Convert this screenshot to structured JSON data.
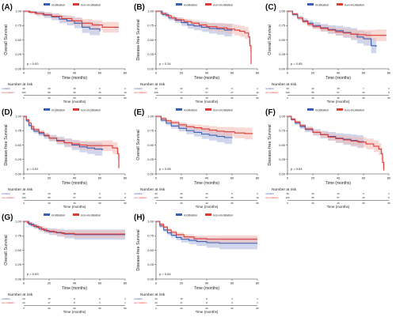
{
  "colors": {
    "blue": "#3b5fb4",
    "red": "#e03a35",
    "blue_band": "#aab5dc",
    "red_band": "#f2b9b3",
    "axis": "#333333"
  },
  "legend_labels": [
    "motilation",
    "non-motilation"
  ],
  "x_ticks": [
    "0",
    "20",
    "40",
    "60",
    "80"
  ],
  "y_ticks": [
    "0.00",
    "0.25",
    "0.50",
    "0.75",
    "1.00"
  ],
  "xlabel": "Time (months)",
  "risk_title": "Number at risk",
  "risk_rowlabels": [
    "motilation",
    "non-motilation"
  ],
  "chart_data": [
    {
      "panel": "(A)",
      "type": "line",
      "ylabel": "Overall Survival",
      "pvalue": "p = 0.63",
      "xlim": [
        0,
        80
      ],
      "ylim": [
        0,
        1
      ],
      "series": [
        {
          "name": "motilation",
          "x": [
            0,
            5,
            10,
            16,
            22,
            28,
            34,
            40,
            46,
            52,
            60
          ],
          "y": [
            1.0,
            0.98,
            0.96,
            0.93,
            0.9,
            0.86,
            0.83,
            0.79,
            0.72,
            0.69,
            0.65
          ]
        },
        {
          "name": "non-motilation",
          "x": [
            0,
            4,
            9,
            15,
            22,
            30,
            38,
            46,
            54,
            62,
            75
          ],
          "y": [
            1.0,
            0.98,
            0.96,
            0.94,
            0.91,
            0.87,
            0.83,
            0.79,
            0.76,
            0.72,
            0.72
          ]
        }
      ],
      "risk": [
        [
          "30",
          "20",
          "15",
          "6",
          "2"
        ],
        [
          "100",
          "80",
          "60",
          "25",
          "10"
        ]
      ]
    },
    {
      "panel": "(B)",
      "type": "line",
      "ylabel": "Disease-free Survival",
      "pvalue": "p = 0.34",
      "xlim": [
        0,
        80
      ],
      "ylim": [
        0,
        1
      ],
      "series": [
        {
          "name": "motilation",
          "x": [
            0,
            5,
            10,
            15,
            20,
            25,
            30,
            36,
            42,
            48,
            54,
            60
          ],
          "y": [
            1.0,
            0.94,
            0.88,
            0.84,
            0.8,
            0.76,
            0.74,
            0.72,
            0.7,
            0.69,
            0.67,
            0.66
          ]
        },
        {
          "name": "non-motilation",
          "x": [
            0,
            4,
            8,
            12,
            16,
            22,
            28,
            34,
            40,
            48,
            56,
            62,
            66,
            70,
            73,
            74,
            75
          ],
          "y": [
            1.0,
            0.96,
            0.92,
            0.88,
            0.85,
            0.82,
            0.79,
            0.76,
            0.73,
            0.71,
            0.69,
            0.67,
            0.65,
            0.62,
            0.55,
            0.4,
            0.08
          ]
        }
      ],
      "risk": [
        [
          "30",
          "22",
          "13",
          "6",
          "2"
        ],
        [
          "100",
          "77",
          "57",
          "27",
          "10"
        ]
      ]
    },
    {
      "panel": "(C)",
      "type": "line",
      "ylabel": "Overall Survival",
      "pvalue": "p = 0.85",
      "xlim": [
        0,
        80
      ],
      "ylim": [
        0,
        1
      ],
      "series": [
        {
          "name": "motilation",
          "x": [
            0,
            4,
            8,
            12,
            16,
            20,
            26,
            32,
            38,
            44,
            50,
            55,
            60,
            66,
            70
          ],
          "y": [
            1.0,
            0.94,
            0.88,
            0.83,
            0.79,
            0.75,
            0.71,
            0.68,
            0.66,
            0.63,
            0.6,
            0.55,
            0.52,
            0.4,
            0.38
          ]
        },
        {
          "name": "non-motilation",
          "x": [
            0,
            4,
            8,
            12,
            16,
            20,
            26,
            32,
            38,
            44,
            50,
            56,
            62,
            70,
            78
          ],
          "y": [
            1.0,
            0.95,
            0.88,
            0.82,
            0.77,
            0.73,
            0.7,
            0.67,
            0.64,
            0.62,
            0.6,
            0.59,
            0.58,
            0.58,
            0.58
          ]
        }
      ],
      "risk": [
        [
          "30",
          "22",
          "15",
          "7",
          "2"
        ],
        [
          "100",
          "80",
          "57",
          "20",
          "8"
        ]
      ]
    },
    {
      "panel": "(D)",
      "type": "line",
      "ylabel": "Disease-free Survival",
      "pvalue": "p = 0.61",
      "xlim": [
        0,
        80
      ],
      "ylim": [
        0,
        1
      ],
      "series": [
        {
          "name": "motilation",
          "x": [
            0,
            2,
            4,
            6,
            8,
            12,
            16,
            20,
            26,
            32,
            38,
            44,
            50,
            56,
            62
          ],
          "y": [
            1.0,
            0.92,
            0.84,
            0.78,
            0.74,
            0.7,
            0.66,
            0.62,
            0.58,
            0.54,
            0.5,
            0.47,
            0.45,
            0.43,
            0.41
          ]
        },
        {
          "name": "non-motilation",
          "x": [
            0,
            2,
            4,
            6,
            8,
            12,
            16,
            20,
            26,
            32,
            38,
            44,
            50,
            56,
            62,
            70,
            74,
            75
          ],
          "y": [
            1.0,
            0.94,
            0.88,
            0.82,
            0.77,
            0.72,
            0.67,
            0.62,
            0.57,
            0.54,
            0.52,
            0.5,
            0.49,
            0.49,
            0.49,
            0.45,
            0.35,
            0.1
          ]
        }
      ],
      "risk": [
        [
          "30",
          "20",
          "15",
          "6",
          "2"
        ],
        [
          "100",
          "80",
          "57",
          "22",
          "8"
        ]
      ]
    },
    {
      "panel": "(E)",
      "type": "line",
      "ylabel": "Overall Survival",
      "pvalue": "p = 0.08",
      "xlim": [
        0,
        80
      ],
      "ylim": [
        0,
        1
      ],
      "series": [
        {
          "name": "motilation",
          "x": [
            0,
            4,
            8,
            12,
            18,
            24,
            30,
            36,
            42,
            48,
            54,
            60
          ],
          "y": [
            1.0,
            0.93,
            0.88,
            0.83,
            0.79,
            0.75,
            0.72,
            0.69,
            0.67,
            0.65,
            0.63,
            0.62
          ]
        },
        {
          "name": "non-motilation",
          "x": [
            0,
            4,
            8,
            12,
            18,
            24,
            30,
            36,
            42,
            48,
            54,
            62,
            70,
            76
          ],
          "y": [
            1.0,
            0.96,
            0.92,
            0.89,
            0.85,
            0.82,
            0.8,
            0.78,
            0.76,
            0.74,
            0.73,
            0.71,
            0.7,
            0.69
          ]
        }
      ],
      "risk": [
        [
          "30",
          "20",
          "13",
          "5",
          "2"
        ],
        [
          "100",
          "80",
          "57",
          "25",
          "10"
        ]
      ]
    },
    {
      "panel": "(F)",
      "type": "line",
      "ylabel": "Disease-free Survival",
      "pvalue": "p = 0.64",
      "xlim": [
        0,
        80
      ],
      "ylim": [
        0,
        1
      ],
      "series": [
        {
          "name": "motilation",
          "x": [
            0,
            3,
            6,
            10,
            14,
            20,
            26,
            32,
            38,
            44,
            50,
            55,
            60
          ],
          "y": [
            1.0,
            0.94,
            0.88,
            0.82,
            0.77,
            0.72,
            0.68,
            0.65,
            0.62,
            0.6,
            0.58,
            0.56,
            0.55
          ]
        },
        {
          "name": "non-motilation",
          "x": [
            0,
            3,
            6,
            10,
            14,
            20,
            26,
            32,
            38,
            44,
            50,
            56,
            62,
            68,
            72,
            74,
            75,
            76
          ],
          "y": [
            1.0,
            0.95,
            0.9,
            0.84,
            0.78,
            0.72,
            0.68,
            0.64,
            0.61,
            0.59,
            0.57,
            0.55,
            0.52,
            0.48,
            0.43,
            0.35,
            0.2,
            0.06
          ]
        }
      ],
      "risk": [
        [
          "30",
          "20",
          "13",
          "5",
          "2"
        ],
        [
          "100",
          "80",
          "57",
          "22",
          "9"
        ]
      ]
    },
    {
      "panel": "(G)",
      "type": "line",
      "ylabel": "Overall Survival",
      "pvalue": "p = 0.63",
      "xlim": [
        0,
        80
      ],
      "ylim": [
        0,
        1
      ],
      "series": [
        {
          "name": "motilation",
          "x": [
            0,
            4,
            8,
            12,
            16,
            20,
            26,
            32,
            40,
            80
          ],
          "y": [
            1.0,
            0.95,
            0.91,
            0.87,
            0.84,
            0.82,
            0.8,
            0.78,
            0.77,
            0.77
          ]
        },
        {
          "name": "non-motilation",
          "x": [
            0,
            3,
            6,
            10,
            14,
            18,
            24,
            30,
            40,
            80
          ],
          "y": [
            1.0,
            0.97,
            0.93,
            0.9,
            0.86,
            0.83,
            0.81,
            0.79,
            0.78,
            0.78
          ]
        }
      ],
      "risk": [
        [
          "23",
          "15",
          "8",
          "3",
          "1"
        ],
        [
          "20",
          "17",
          "8",
          "3",
          "1"
        ]
      ]
    },
    {
      "panel": "(H)",
      "type": "line",
      "ylabel": "Disease-free Survival",
      "pvalue": "p = 0.64",
      "xlim": [
        0,
        80
      ],
      "ylim": [
        0,
        1
      ],
      "series": [
        {
          "name": "motilation",
          "x": [
            0,
            3,
            6,
            9,
            12,
            16,
            20,
            26,
            32,
            40,
            50,
            80
          ],
          "y": [
            1.0,
            0.92,
            0.85,
            0.8,
            0.76,
            0.72,
            0.69,
            0.67,
            0.65,
            0.63,
            0.62,
            0.62
          ]
        },
        {
          "name": "non-motilation",
          "x": [
            0,
            3,
            6,
            9,
            12,
            16,
            22,
            30,
            40,
            80
          ],
          "y": [
            1.0,
            0.95,
            0.9,
            0.85,
            0.81,
            0.77,
            0.73,
            0.7,
            0.69,
            0.69
          ]
        }
      ],
      "risk": [
        [
          "23",
          "15",
          "8",
          "3",
          "1"
        ],
        [
          "20",
          "17",
          "8",
          "3",
          "1"
        ]
      ]
    }
  ]
}
